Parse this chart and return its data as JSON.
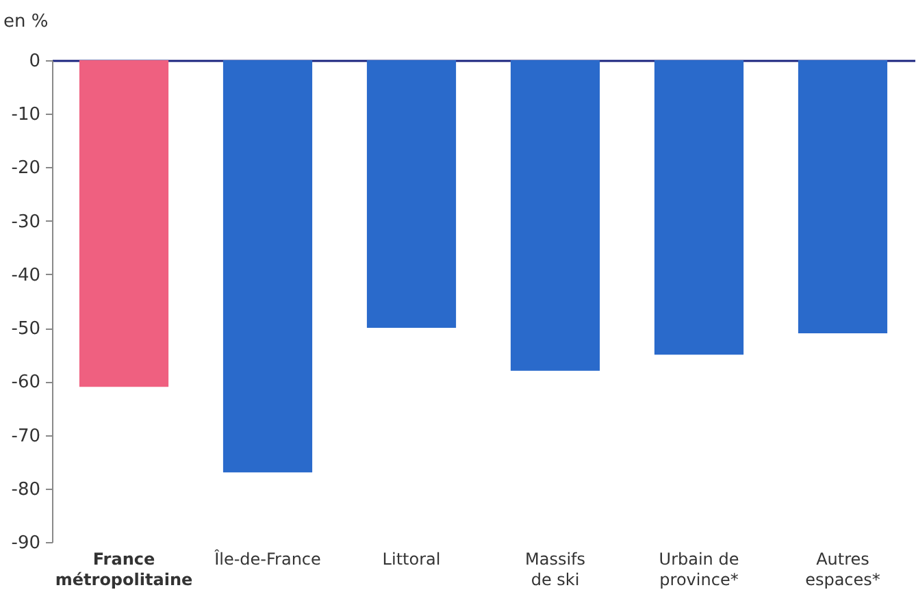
{
  "chart_data": {
    "type": "bar",
    "ylabel": "en %",
    "categories": [
      "France métropolitaine",
      "Île-de-France",
      "Littoral",
      "Massifs de ski",
      "Urbain de province*",
      "Autres espaces*"
    ],
    "values": [
      -61,
      -77,
      -50,
      -58,
      -55,
      -51
    ],
    "colors": [
      "#ef6080",
      "#2a6acb",
      "#2a6acb",
      "#2a6acb",
      "#2a6acb",
      "#2a6acb"
    ],
    "ylim": [
      -90,
      0
    ],
    "yticks": [
      0,
      -10,
      -20,
      -30,
      -40,
      -50,
      -60,
      -70,
      -80,
      -90
    ]
  }
}
